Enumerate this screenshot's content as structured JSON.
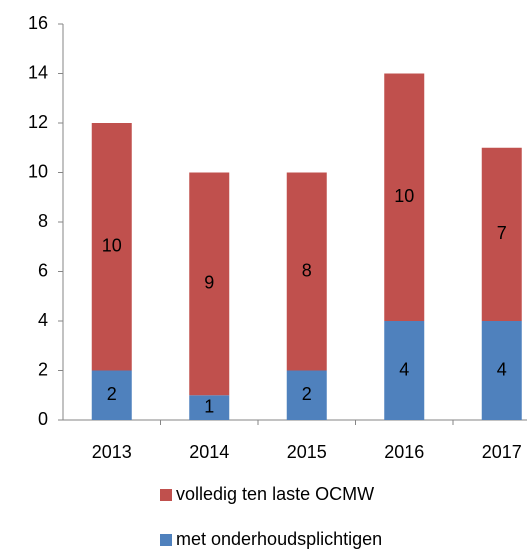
{
  "chart_data": {
    "type": "stacked_bar",
    "categories": [
      "2013",
      "2014",
      "2015",
      "2016",
      "2017"
    ],
    "series": [
      {
        "name": "met onderhoudsplichtigen",
        "color": "#4f81bd",
        "values": [
          2,
          1,
          2,
          4,
          4
        ]
      },
      {
        "name": "volledig ten laste OCMW",
        "color": "#c0504d",
        "values": [
          10,
          9,
          8,
          10,
          7
        ]
      }
    ],
    "ylim": [
      0,
      16
    ],
    "yticks": [
      0,
      2,
      4,
      6,
      8,
      10,
      12,
      14,
      16
    ],
    "grid": false,
    "legend": "bottom"
  }
}
